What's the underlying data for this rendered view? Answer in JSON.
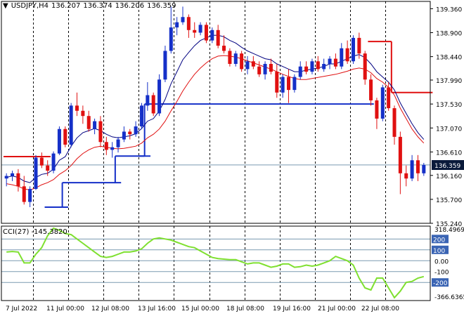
{
  "header": {
    "symbol": "USDJPY,H4",
    "open": "136.207",
    "high": "136.374",
    "low": "136.206",
    "close": "136.359",
    "triangle": "▼"
  },
  "cci_header": {
    "label": "CCI(27)",
    "value": "-145.3820"
  },
  "colors": {
    "bull": "#1530c8",
    "bear": "#e01010",
    "fast_ma": "#000080",
    "slow_ma": "#e01010",
    "support": "#1530c8",
    "resistance": "#e01010",
    "cci_line": "#7fe030",
    "cci_badge": "#3a64b4",
    "price_badge": "#0a1a3a"
  },
  "chart_data": [
    {
      "type": "candlestick",
      "title": "USDJPY,H4",
      "y_ticks": [
        "139.360",
        "138.900",
        "138.440",
        "137.990",
        "137.530",
        "137.070",
        "136.610",
        "136.160",
        "135.700",
        "135.240"
      ],
      "ylim": [
        135.24,
        139.5
      ],
      "x_ticks": [
        "7 Jul 2022",
        "11 Jul 00:00",
        "12 Jul 08:00",
        "13 Jul 16:00",
        "15 Jul 00:00",
        "18 Jul 08:00",
        "19 Jul 16:00",
        "21 Jul 00:00",
        "22 Jul 08:00"
      ],
      "current_price": "136.359",
      "reference_line": 136.36,
      "candles": [
        [
          136.1,
          136.2,
          135.95,
          136.15
        ],
        [
          136.15,
          136.25,
          136.05,
          136.2
        ],
        [
          136.2,
          136.28,
          135.85,
          135.95
        ],
        [
          135.95,
          136.15,
          135.6,
          135.65
        ],
        [
          135.65,
          135.95,
          135.55,
          135.9
        ],
        [
          135.9,
          136.55,
          135.88,
          136.5
        ],
        [
          136.5,
          136.6,
          136.3,
          136.35
        ],
        [
          136.35,
          136.45,
          136.15,
          136.25
        ],
        [
          136.25,
          136.62,
          136.2,
          136.58
        ],
        [
          136.58,
          137.1,
          136.55,
          137.05
        ],
        [
          137.05,
          137.1,
          136.7,
          136.75
        ],
        [
          136.75,
          137.55,
          136.7,
          137.5
        ],
        [
          137.5,
          137.75,
          137.3,
          137.4
        ],
        [
          137.4,
          137.5,
          137.15,
          137.3
        ],
        [
          137.3,
          137.4,
          137.0,
          137.05
        ],
        [
          137.05,
          137.25,
          136.95,
          137.2
        ],
        [
          137.2,
          137.3,
          136.7,
          136.8
        ],
        [
          136.8,
          136.9,
          136.55,
          136.65
        ],
        [
          136.65,
          136.8,
          136.5,
          136.7
        ],
        [
          136.7,
          136.9,
          136.6,
          136.85
        ],
        [
          136.85,
          137.1,
          136.8,
          137.0
        ],
        [
          137.0,
          137.05,
          136.85,
          136.95
        ],
        [
          136.95,
          137.2,
          136.9,
          137.1
        ],
        [
          137.1,
          137.55,
          137.05,
          137.5
        ],
        [
          137.5,
          137.95,
          137.4,
          137.7
        ],
        [
          137.7,
          137.75,
          137.3,
          137.35
        ],
        [
          137.35,
          138.1,
          137.3,
          138.0
        ],
        [
          138.0,
          138.65,
          137.95,
          138.55
        ],
        [
          138.55,
          139.4,
          138.5,
          139.0
        ],
        [
          139.0,
          139.2,
          138.85,
          139.1
        ],
        [
          139.1,
          139.4,
          139.05,
          139.2
        ],
        [
          139.2,
          139.25,
          138.8,
          138.95
        ],
        [
          138.95,
          139.1,
          138.8,
          138.9
        ],
        [
          138.9,
          139.1,
          138.85,
          139.05
        ],
        [
          139.05,
          139.1,
          138.7,
          138.75
        ],
        [
          138.75,
          139.0,
          138.7,
          138.95
        ],
        [
          138.95,
          139.05,
          138.6,
          138.65
        ],
        [
          138.65,
          138.85,
          138.5,
          138.55
        ],
        [
          138.55,
          138.6,
          138.25,
          138.3
        ],
        [
          138.3,
          138.55,
          138.25,
          138.5
        ],
        [
          138.5,
          138.55,
          138.15,
          138.2
        ],
        [
          138.2,
          138.45,
          138.1,
          138.35
        ],
        [
          138.35,
          138.45,
          138.2,
          138.25
        ],
        [
          138.25,
          138.35,
          138.05,
          138.1
        ],
        [
          138.1,
          138.35,
          138.0,
          138.3
        ],
        [
          138.3,
          138.4,
          138.1,
          138.15
        ],
        [
          138.15,
          138.3,
          137.65,
          137.75
        ],
        [
          137.75,
          138.1,
          137.65,
          138.05
        ],
        [
          138.05,
          138.2,
          137.55,
          137.8
        ],
        [
          137.8,
          138.1,
          137.75,
          138.05
        ],
        [
          138.05,
          138.35,
          138.0,
          138.25
        ],
        [
          138.25,
          138.35,
          138.1,
          138.15
        ],
        [
          138.15,
          138.4,
          138.1,
          138.35
        ],
        [
          138.35,
          138.45,
          138.15,
          138.2
        ],
        [
          138.2,
          138.4,
          138.15,
          138.3
        ],
        [
          138.3,
          138.45,
          138.2,
          138.4
        ],
        [
          138.4,
          138.5,
          138.2,
          138.25
        ],
        [
          138.25,
          138.7,
          138.2,
          138.6
        ],
        [
          138.6,
          138.75,
          138.3,
          138.35
        ],
        [
          138.35,
          138.85,
          138.3,
          138.8
        ],
        [
          138.8,
          138.9,
          138.4,
          138.5
        ],
        [
          138.5,
          138.55,
          137.9,
          138.0
        ],
        [
          138.0,
          138.1,
          137.5,
          137.6
        ],
        [
          137.6,
          137.65,
          137.05,
          137.25
        ],
        [
          137.25,
          137.9,
          137.2,
          137.85
        ],
        [
          137.85,
          137.95,
          137.4,
          137.45
        ],
        [
          137.45,
          137.5,
          136.75,
          136.9
        ],
        [
          136.9,
          137.0,
          135.8,
          136.2
        ],
        [
          136.2,
          136.35,
          135.95,
          136.1
        ],
        [
          136.1,
          136.55,
          136.05,
          136.45
        ],
        [
          136.45,
          136.55,
          136.05,
          136.2
        ],
        [
          136.2,
          136.4,
          136.15,
          136.36
        ]
      ],
      "fast_ma": [
        136.12,
        136.15,
        136.12,
        136.05,
        136.02,
        136.12,
        136.18,
        136.2,
        136.28,
        136.45,
        136.52,
        136.72,
        136.88,
        136.98,
        137.02,
        137.06,
        137.02,
        136.95,
        136.9,
        136.88,
        136.9,
        136.92,
        136.96,
        137.06,
        137.2,
        137.25,
        137.4,
        137.62,
        137.92,
        138.15,
        138.38,
        138.52,
        138.65,
        138.75,
        138.8,
        138.85,
        138.85,
        138.82,
        138.75,
        138.7,
        138.62,
        138.55,
        138.5,
        138.45,
        138.4,
        138.38,
        138.3,
        138.25,
        138.2,
        138.15,
        138.15,
        138.18,
        138.2,
        138.22,
        138.25,
        138.3,
        138.3,
        138.35,
        138.4,
        138.45,
        138.48,
        138.42,
        138.3,
        138.15,
        138.05,
        137.95,
        137.8,
        137.55,
        137.35,
        137.15,
        136.98,
        136.85
      ],
      "slow_ma": [
        136.0,
        135.98,
        135.95,
        135.9,
        135.88,
        135.92,
        135.98,
        136.02,
        136.08,
        136.18,
        136.25,
        136.35,
        136.48,
        136.58,
        136.65,
        136.7,
        136.72,
        136.7,
        136.68,
        136.67,
        136.68,
        136.7,
        136.72,
        136.78,
        136.88,
        136.95,
        137.05,
        137.2,
        137.4,
        137.58,
        137.78,
        137.95,
        138.1,
        138.22,
        138.32,
        138.4,
        138.45,
        138.46,
        138.45,
        138.43,
        138.4,
        138.36,
        138.32,
        138.28,
        138.24,
        138.2,
        138.15,
        138.1,
        138.06,
        138.02,
        138.0,
        138.0,
        138.02,
        138.04,
        138.06,
        138.08,
        138.1,
        138.13,
        138.16,
        138.2,
        138.22,
        138.2,
        138.13,
        138.02,
        137.95,
        137.85,
        137.7,
        137.45,
        137.25,
        137.05,
        136.9,
        136.78
      ],
      "support_levels": [
        {
          "from": 0,
          "to": 6,
          "value": null
        },
        {
          "from": 7,
          "to": 10,
          "value": 135.55
        },
        {
          "from": 10,
          "to": 19,
          "value": 136.02
        },
        {
          "from": 19,
          "to": 23,
          "value": 136.53
        },
        {
          "from": 23,
          "to": 24,
          "value": 136.53
        },
        {
          "from": 24,
          "to": 62,
          "value": 137.53
        }
      ],
      "resistance_levels": [
        {
          "from": 0,
          "to": 7,
          "value": 136.52
        },
        {
          "from": 62,
          "to": 65,
          "value": 138.73
        },
        {
          "from": 66,
          "to": 72,
          "value": 137.75
        }
      ]
    },
    {
      "type": "line",
      "title": "CCI(27)",
      "y_ticks": [
        "318.4969",
        "200",
        "100",
        "0.00",
        "-100",
        "-200",
        "-366.6365"
      ],
      "ylim": [
        -366.6365,
        318.4969
      ],
      "levels": [
        200,
        100,
        0,
        -100,
        -200
      ],
      "values": [
        80,
        85,
        80,
        -20,
        -20,
        60,
        120,
        230,
        300,
        280,
        250,
        240,
        200,
        160,
        120,
        80,
        40,
        30,
        40,
        60,
        80,
        80,
        90,
        110,
        160,
        200,
        210,
        200,
        190,
        170,
        150,
        130,
        120,
        90,
        60,
        30,
        20,
        15,
        10,
        10,
        -10,
        -30,
        -20,
        -20,
        -40,
        -60,
        -50,
        -30,
        -30,
        -60,
        -55,
        -40,
        -50,
        -40,
        -20,
        0,
        40,
        20,
        0,
        -40,
        -160,
        -250,
        -270,
        -160,
        -160,
        -250,
        -340,
        -280,
        -200,
        -190,
        -160,
        -145.382
      ]
    }
  ]
}
